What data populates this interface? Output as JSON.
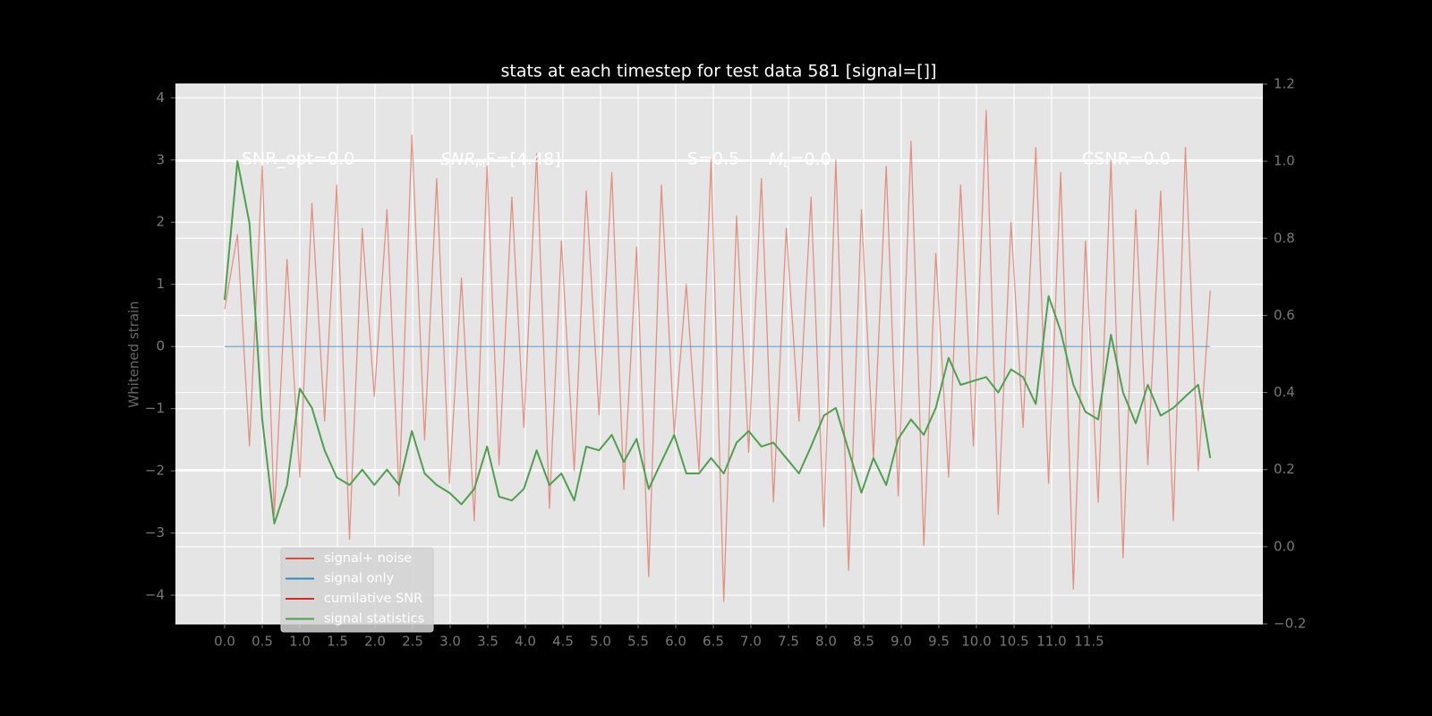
{
  "chart_data": {
    "type": "line",
    "title": "stats at each timestep for test data 581 [signal=[]]",
    "ylabel": "Whitened strain",
    "annotations": [
      "SNR_opt=0.0",
      [
        "SNR",
        "M",
        "F=[4.48]"
      ],
      "S=0.5",
      [
        "M",
        "c",
        "=0.0"
      ],
      "CSNR=0.0"
    ],
    "x": [
      0,
      0.17,
      0.33,
      0.5,
      0.66,
      0.83,
      1.0,
      1.16,
      1.33,
      1.49,
      1.66,
      1.83,
      1.99,
      2.16,
      2.32,
      2.49,
      2.66,
      2.82,
      2.99,
      3.15,
      3.32,
      3.49,
      3.65,
      3.82,
      3.98,
      4.15,
      4.32,
      4.48,
      4.65,
      4.81,
      4.98,
      5.15,
      5.31,
      5.48,
      5.64,
      5.81,
      5.98,
      6.14,
      6.31,
      6.47,
      6.64,
      6.81,
      6.97,
      7.14,
      7.3,
      7.47,
      7.64,
      7.8,
      7.97,
      8.13,
      8.3,
      8.47,
      8.63,
      8.8,
      8.96,
      9.13,
      9.3,
      9.46,
      9.63,
      9.79,
      9.96,
      10.13,
      10.29,
      10.46,
      10.62,
      10.79,
      10.96,
      11.12,
      11.29,
      11.45,
      11.62,
      11.79,
      11.95,
      12.12,
      12.28,
      12.45,
      12.62,
      12.78,
      12.95,
      13.11
    ],
    "series": [
      {
        "name": "signal+ noise",
        "color": "#e24a33",
        "values": [
          0.6,
          1.8,
          -1.6,
          2.9,
          -2.7,
          1.4,
          -2.1,
          2.3,
          -1.2,
          2.6,
          -3.1,
          1.9,
          -0.8,
          2.2,
          -2.4,
          3.4,
          -1.5,
          2.7,
          -2.2,
          1.1,
          -2.8,
          2.9,
          -1.9,
          2.4,
          -1.3,
          3.1,
          -2.6,
          1.7,
          -2.0,
          2.5,
          -1.1,
          2.8,
          -2.3,
          1.6,
          -3.7,
          2.6,
          -1.4,
          1.0,
          -2.0,
          3.0,
          -4.1,
          2.1,
          -1.7,
          2.7,
          -2.5,
          1.9,
          -1.2,
          2.4,
          -2.9,
          3.0,
          -3.6,
          2.2,
          -1.8,
          2.9,
          -2.4,
          3.3,
          -3.2,
          1.5,
          -2.1,
          2.6,
          -1.6,
          3.8,
          -2.7,
          2.0,
          -1.3,
          3.2,
          -2.2,
          2.8,
          -3.9,
          1.7,
          -2.5,
          3.0,
          -3.4,
          2.2,
          -1.9,
          2.5,
          -2.8,
          3.2,
          -2.0,
          0.9
        ]
      },
      {
        "name": "signal only",
        "color": "#348abd",
        "values": [
          0,
          0,
          0,
          0,
          0,
          0,
          0,
          0,
          0,
          0,
          0,
          0,
          0,
          0,
          0,
          0,
          0,
          0,
          0,
          0,
          0,
          0,
          0,
          0,
          0,
          0,
          0,
          0,
          0,
          0,
          0,
          0,
          0,
          0,
          0,
          0,
          0,
          0,
          0,
          0,
          0,
          0,
          0,
          0,
          0,
          0,
          0,
          0,
          0,
          0,
          0,
          0,
          0,
          0,
          0,
          0,
          0,
          0,
          0,
          0,
          0,
          0,
          0,
          0,
          0,
          0,
          0,
          0,
          0,
          0,
          0,
          0,
          0,
          0,
          0,
          0,
          0,
          0,
          0,
          0
        ]
      },
      {
        "name": "cumilative SNR",
        "color": "#d62a1e",
        "axis": "y2",
        "values": [
          null,
          null,
          null,
          null,
          null,
          null,
          null,
          null,
          null,
          null,
          null,
          null,
          null,
          null,
          null,
          null,
          null,
          null,
          null,
          null,
          null,
          null,
          null,
          null,
          null,
          null,
          null,
          null,
          null,
          null,
          null,
          null,
          null,
          null,
          null,
          null,
          null,
          null,
          null,
          null,
          null,
          null,
          null,
          null,
          null,
          null,
          null,
          null,
          null,
          null,
          null,
          null,
          null,
          null,
          null,
          null,
          null,
          null,
          null,
          null,
          null,
          null,
          null,
          null,
          null,
          null,
          null,
          null,
          null,
          null,
          null,
          null,
          null,
          null,
          null,
          null,
          null,
          null,
          null,
          null
        ]
      },
      {
        "name": "signal statistics",
        "color": "#4f9f4f",
        "axis": "y2",
        "values": [
          0.64,
          1.0,
          0.84,
          0.33,
          0.06,
          0.16,
          0.41,
          0.36,
          0.25,
          0.18,
          0.16,
          0.2,
          0.16,
          0.2,
          0.16,
          0.3,
          0.19,
          0.16,
          0.14,
          0.11,
          0.15,
          0.26,
          0.13,
          0.12,
          0.15,
          0.25,
          0.16,
          0.19,
          0.12,
          0.26,
          0.25,
          0.29,
          0.22,
          0.28,
          0.15,
          0.22,
          0.29,
          0.19,
          0.19,
          0.23,
          0.19,
          0.27,
          0.3,
          0.26,
          0.27,
          0.23,
          0.19,
          0.26,
          0.34,
          0.36,
          0.25,
          0.14,
          0.23,
          0.16,
          0.28,
          0.33,
          0.29,
          0.36,
          0.49,
          0.42,
          0.43,
          0.44,
          0.4,
          0.46,
          0.44,
          0.37,
          0.65,
          0.56,
          0.42,
          0.35,
          0.33,
          0.55,
          0.4,
          0.32,
          0.42,
          0.34,
          0.36,
          0.39,
          0.42,
          0.23
        ]
      }
    ],
    "xlim": [
      -0.655,
      13.81
    ],
    "xticks": [
      {
        "value": 0,
        "label": "0.0"
      },
      0.5,
      {
        "value": 1,
        "label": "1.0"
      },
      1.5,
      {
        "value": 2,
        "label": "2.0"
      },
      2.5,
      {
        "value": 3,
        "label": "3.0"
      },
      3.5,
      {
        "value": 4,
        "label": "4.0"
      },
      4.5,
      {
        "value": 5,
        "label": "5.0"
      },
      5.5,
      {
        "value": 6,
        "label": "6.0"
      },
      6.5,
      {
        "value": 7,
        "label": "7.0"
      },
      7.5,
      {
        "value": 8,
        "label": "8.0"
      },
      8.5,
      {
        "value": 9,
        "label": "9.0"
      },
      9.5,
      {
        "value": 10,
        "label": "10.0"
      },
      10.5,
      {
        "value": 11,
        "label": "11.0"
      },
      11.5
    ],
    "ylim": [
      -4.46,
      4.22
    ],
    "yticks": [
      {
        "value": -4,
        "label": "−4"
      },
      {
        "value": -3,
        "label": "−3"
      },
      {
        "value": -2,
        "label": "−2"
      },
      {
        "value": -1,
        "label": "−1"
      },
      0,
      1,
      2,
      3,
      4
    ],
    "y2lim": [
      -0.2,
      1.2
    ],
    "y2ticks": [
      {
        "value": -0.2,
        "label": "−0.2"
      },
      {
        "value": 0,
        "label": "0.0"
      },
      0.2,
      0.4,
      0.6,
      0.8,
      {
        "value": 1,
        "label": "1.0"
      },
      1.2
    ],
    "grid": true,
    "legend": "lower left"
  }
}
